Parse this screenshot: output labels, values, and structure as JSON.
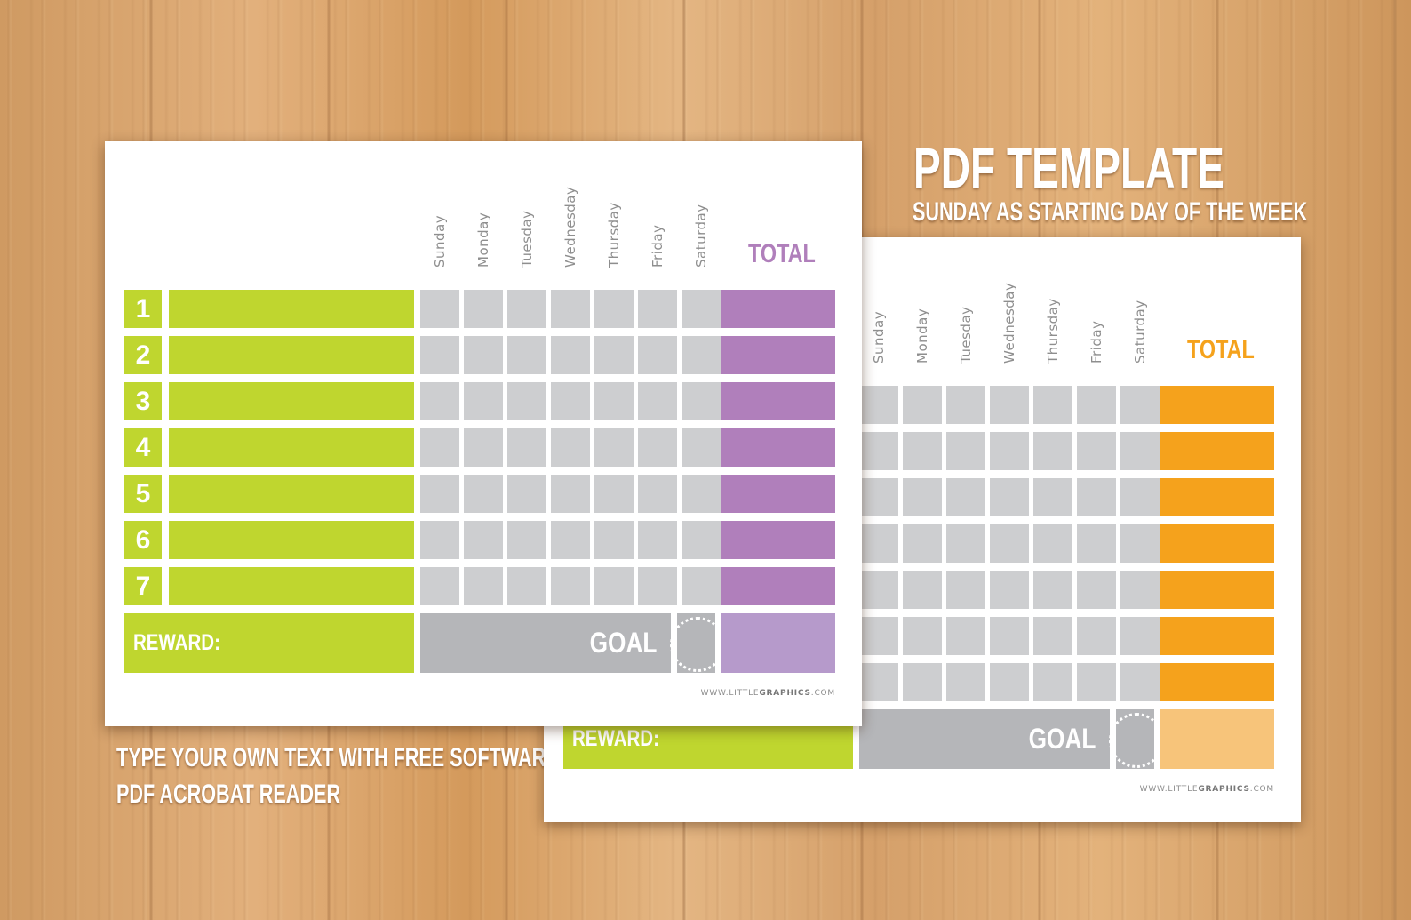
{
  "heading": {
    "title": "PDF TEMPLATE",
    "subtitle": "SUNDAY AS STARTING DAY OF THE WEEK"
  },
  "caption": {
    "line1": "TYPE YOUR OWN TEXT WITH FREE SOFTWARE",
    "line2": "PDF ACROBAT READER"
  },
  "days": [
    "Sunday",
    "Monday",
    "Tuesday",
    "Wednesday",
    "Thursday",
    "Friday",
    "Saturday"
  ],
  "row_numbers": [
    "1",
    "2",
    "3",
    "4",
    "5",
    "6",
    "7"
  ],
  "labels": {
    "total": "TOTAL",
    "reward": "REWARD:",
    "goal": "GOAL",
    "site_prefix": "WWW.LITTLE",
    "site_bold": "GRAPHICS",
    "site_suffix": ".COM"
  },
  "colors": {
    "green": "#bfd62f",
    "grey_cell": "#cdced0",
    "goal_grey": "#b5b6b9",
    "purple": "#b07fbb",
    "purple_light": "#b69acb",
    "orange": "#f5a21c",
    "orange_light": "#f7c47a"
  },
  "sheets": [
    {
      "id": "front",
      "total_color": "#b07fbb",
      "total_light": "#b69acb"
    },
    {
      "id": "back",
      "total_color": "#f5a21c",
      "total_light": "#f7c47a"
    }
  ]
}
